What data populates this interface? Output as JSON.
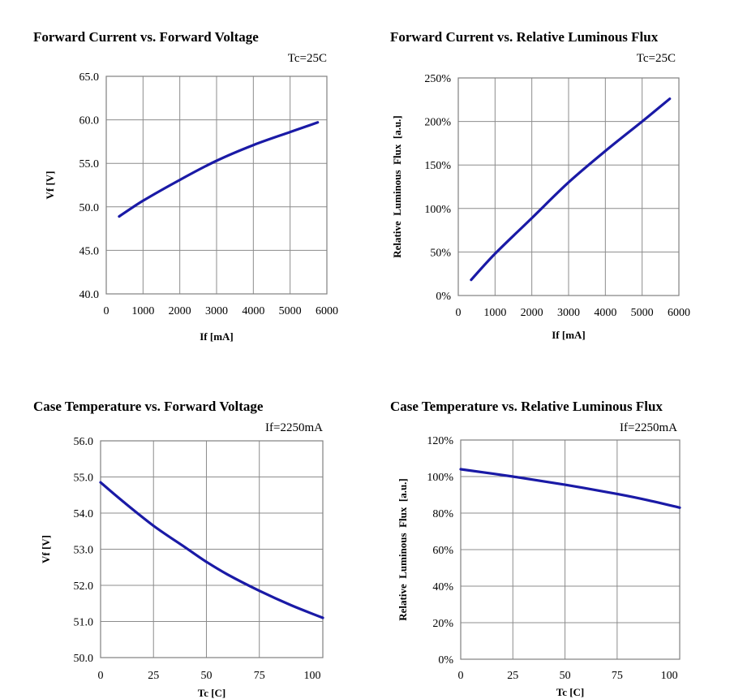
{
  "chart_data": [
    {
      "type": "line",
      "title": "Forward Current vs. Forward Voltage",
      "condition": "Tc=25C",
      "xlabel": "If [mA]",
      "ylabel": "Vf [V]",
      "xlim": [
        0,
        6000
      ],
      "ylim": [
        40.0,
        65.0
      ],
      "xticks": [
        "0",
        "1000",
        "2000",
        "3000",
        "4000",
        "5000",
        "6000"
      ],
      "yticks": [
        "40.0",
        "45.0",
        "50.0",
        "55.0",
        "60.0",
        "65.0"
      ],
      "grid": true,
      "line_color": "#1a1aa6",
      "x": [
        350,
        1000,
        2000,
        3000,
        4000,
        5000,
        5750
      ],
      "y": [
        48.9,
        50.7,
        53.1,
        55.3,
        57.1,
        58.6,
        59.7
      ]
    },
    {
      "type": "line",
      "title": "Forward Current vs. Relative Luminous Flux",
      "condition": "Tc=25C",
      "xlabel": "If [mA]",
      "ylabel": "Relative  Luminous  Flux  [a.u.]",
      "xlim": [
        0,
        6000
      ],
      "ylim": [
        0,
        250
      ],
      "xticks": [
        "0",
        "1000",
        "2000",
        "3000",
        "4000",
        "5000",
        "6000"
      ],
      "yticks": [
        "0%",
        "50%",
        "100%",
        "150%",
        "200%",
        "250%"
      ],
      "grid": true,
      "line_color": "#1a1aa6",
      "x": [
        350,
        1000,
        2000,
        3000,
        4000,
        5000,
        5750
      ],
      "y": [
        18,
        48,
        89,
        130,
        166,
        200,
        226
      ]
    },
    {
      "type": "line",
      "title": "Case Temperature vs. Forward Voltage",
      "condition": "If=2250mA",
      "xlabel": "Tc [C]",
      "ylabel": "Vf [V]",
      "xlim": [
        0,
        105
      ],
      "ylim": [
        50.0,
        56.0
      ],
      "xticks": [
        "0",
        "25",
        "50",
        "75",
        "100"
      ],
      "yticks": [
        "50.0",
        "51.0",
        "52.0",
        "53.0",
        "54.0",
        "55.0",
        "56.0"
      ],
      "grid": true,
      "line_color": "#1a1aa6",
      "x": [
        0,
        10,
        25,
        40,
        50,
        60,
        75,
        90,
        105
      ],
      "y": [
        54.85,
        54.35,
        53.65,
        53.05,
        52.65,
        52.3,
        51.85,
        51.45,
        51.1
      ]
    },
    {
      "type": "line",
      "title": "Case Temperature vs. Relative Luminous Flux",
      "condition": "If=2250mA",
      "xlabel": "Tc [C]",
      "ylabel": "Relative  Luminous  Flux  [a.u.]",
      "xlim": [
        0,
        105
      ],
      "ylim": [
        0,
        120
      ],
      "xticks": [
        "0",
        "25",
        "50",
        "75",
        "100"
      ],
      "yticks": [
        "0%",
        "20%",
        "40%",
        "60%",
        "80%",
        "100%",
        "120%"
      ],
      "grid": true,
      "line_color": "#1a1aa6",
      "x": [
        0,
        25,
        50,
        75,
        90,
        105
      ],
      "y": [
        104,
        100,
        95.5,
        90.5,
        87,
        83
      ]
    }
  ]
}
